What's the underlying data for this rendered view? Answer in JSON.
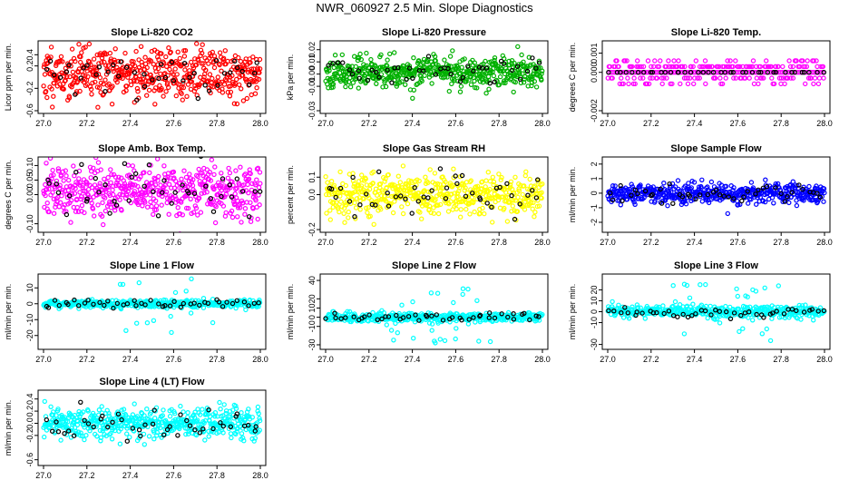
{
  "figure": {
    "title": "NWR_060927  2.5 Min. Slope Diagnostics"
  },
  "chart_data": [
    {
      "id": "co2",
      "type": "scatter",
      "title": "Slope Li-820 CO2",
      "ylabel": "Licor ppm per min.",
      "xlim": [
        27.0,
        28.0
      ],
      "ylim": [
        -0.6,
        0.6
      ],
      "xticks": [
        "27.0",
        "27.2",
        "27.4",
        "27.6",
        "27.8",
        "28.0"
      ],
      "yticks": [
        {
          "v": -0.6,
          "t": "-0.6"
        },
        {
          "v": -0.2,
          "t": "-0.2"
        },
        {
          "v": 0.2,
          "t": "0.2"
        },
        {
          "v": 0.4,
          "t": "0.4"
        }
      ],
      "color": "#ff0000",
      "center": 0.07,
      "spread": 0.24,
      "n_main": 520,
      "n_ref": 45,
      "seed": 11
    },
    {
      "id": "press",
      "type": "scatter",
      "title": "Slope Li-820 Pressure",
      "ylabel": "kPa per min.",
      "xlim": [
        27.0,
        28.0
      ],
      "ylim": [
        -0.03,
        0.025
      ],
      "xticks": [
        "27.0",
        "27.2",
        "27.4",
        "27.6",
        "27.8",
        "28.0"
      ],
      "yticks": [
        {
          "v": -0.03,
          "t": "-0.03"
        },
        {
          "v": -0.01,
          "t": "-0.01"
        },
        {
          "v": 0.0,
          "t": "0.00"
        },
        {
          "v": 0.01,
          "t": "0.01"
        },
        {
          "v": 0.02,
          "t": "0.02"
        }
      ],
      "color": "#00b000",
      "center": 0.002,
      "spread": 0.006,
      "n_main": 520,
      "n_ref": 45,
      "seed": 23
    },
    {
      "id": "temp",
      "type": "scatter",
      "title": "Slope Li-820 Temp.",
      "ylabel": "degrees C per min.",
      "xlim": [
        27.0,
        28.0
      ],
      "ylim": [
        -0.002,
        0.0015
      ],
      "xticks": [
        "27.0",
        "27.2",
        "27.4",
        "27.6",
        "27.8",
        "28.0"
      ],
      "yticks": [
        {
          "v": -0.002,
          "t": "-0.002"
        },
        {
          "v": 0.0,
          "t": "0.000"
        },
        {
          "v": 0.001,
          "t": "0.001"
        }
      ],
      "color": "#ff00ff",
      "center": 0.0,
      "spread": 0.0006,
      "n_main": 200,
      "n_ref": 40,
      "seed": 37,
      "quantized": true
    },
    {
      "id": "box",
      "type": "scatter",
      "title": "Slope Amb. Box Temp.",
      "ylabel": "degrees C per min.",
      "xlim": [
        27.0,
        28.0
      ],
      "ylim": [
        -0.12,
        0.12
      ],
      "xticks": [
        "27.0",
        "27.2",
        "27.4",
        "27.6",
        "27.8",
        "28.0"
      ],
      "yticks": [
        {
          "v": -0.1,
          "t": "-0.10"
        },
        {
          "v": 0.0,
          "t": "0.00"
        },
        {
          "v": 0.05,
          "t": "0.05"
        },
        {
          "v": 0.1,
          "t": "0.10"
        }
      ],
      "color": "#ff00ff",
      "center": 0.01,
      "spread": 0.045,
      "n_main": 520,
      "n_ref": 45,
      "seed": 41
    },
    {
      "id": "rh",
      "type": "scatter",
      "title": "Slope Gas Stream RH",
      "ylabel": "percent per min.",
      "xlim": [
        27.0,
        28.0
      ],
      "ylim": [
        -0.2,
        0.2
      ],
      "xticks": [
        "27.0",
        "27.2",
        "27.4",
        "27.6",
        "27.8",
        "28.0"
      ],
      "yticks": [
        {
          "v": -0.2,
          "t": "-0.2"
        },
        {
          "v": 0.0,
          "t": "0.0"
        },
        {
          "v": 0.1,
          "t": "0.1"
        }
      ],
      "color": "#ffff00",
      "center": 0.0,
      "spread": 0.06,
      "n_main": 520,
      "n_ref": 45,
      "seed": 53
    },
    {
      "id": "flow",
      "type": "scatter",
      "title": "Slope Sample Flow",
      "ylabel": "ml/min per min.",
      "xlim": [
        27.0,
        28.0
      ],
      "ylim": [
        -2.5,
        2.3
      ],
      "xticks": [
        "27.0",
        "27.2",
        "27.4",
        "27.6",
        "27.8",
        "28.0"
      ],
      "yticks": [
        {
          "v": -2,
          "t": "-2"
        },
        {
          "v": -1,
          "t": "-1"
        },
        {
          "v": 0,
          "t": "0"
        },
        {
          "v": 1,
          "t": "1"
        },
        {
          "v": 2,
          "t": "2"
        }
      ],
      "color": "#0000ff",
      "center": 0.0,
      "spread": 0.35,
      "n_main": 480,
      "n_ref": 45,
      "seed": 61
    },
    {
      "id": "line1",
      "type": "scatter",
      "title": "Slope Line 1 Flow",
      "ylabel": "ml/min per min.",
      "xlim": [
        27.0,
        28.0
      ],
      "ylim": [
        -27,
        17
      ],
      "xticks": [
        "27.0",
        "27.2",
        "27.4",
        "27.6",
        "27.8",
        "28.0"
      ],
      "yticks": [
        {
          "v": -20,
          "t": "-20"
        },
        {
          "v": -10,
          "t": "-10"
        },
        {
          "v": 0,
          "t": "0"
        },
        {
          "v": 10,
          "t": "10"
        }
      ],
      "color": "#00ffff",
      "center": 0.0,
      "spread": 1.2,
      "n_main": 420,
      "n_ref": 45,
      "seed": 71,
      "outliers": 14
    },
    {
      "id": "line2",
      "type": "scatter",
      "title": "Slope Line 2 Flow",
      "ylabel": "ml/min per min.",
      "xlim": [
        27.0,
        28.0
      ],
      "ylim": [
        -32,
        44
      ],
      "xticks": [
        "27.0",
        "27.2",
        "27.4",
        "27.6",
        "27.8",
        "28.0"
      ],
      "yticks": [
        {
          "v": -30,
          "t": "-30"
        },
        {
          "v": -10,
          "t": "-10"
        },
        {
          "v": 0,
          "t": "0"
        },
        {
          "v": 10,
          "t": "10"
        },
        {
          "v": 20,
          "t": "20"
        },
        {
          "v": 40,
          "t": "40"
        }
      ],
      "color": "#00ffff",
      "center": 0.0,
      "spread": 2.5,
      "n_main": 420,
      "n_ref": 45,
      "seed": 83,
      "outliers": 22
    },
    {
      "id": "line3",
      "type": "scatter",
      "title": "Slope Line 3 Flow",
      "ylabel": "ml/min per min.",
      "xlim": [
        27.0,
        28.0
      ],
      "ylim": [
        -32,
        32
      ],
      "xticks": [
        "27.0",
        "27.2",
        "27.4",
        "27.6",
        "27.8",
        "28.0"
      ],
      "yticks": [
        {
          "v": -30,
          "t": "-30"
        },
        {
          "v": -10,
          "t": "-10"
        },
        {
          "v": 0,
          "t": "0"
        },
        {
          "v": 10,
          "t": "10"
        },
        {
          "v": 20,
          "t": "20"
        }
      ],
      "color": "#00ffff",
      "center": 0.0,
      "spread": 3.0,
      "n_main": 420,
      "n_ref": 45,
      "seed": 97,
      "outliers": 22
    },
    {
      "id": "line4",
      "type": "scatter",
      "title": "Slope Line 4 (LT) Flow",
      "ylabel": "ml/min per min.",
      "xlim": [
        27.0,
        28.0
      ],
      "ylim": [
        -0.65,
        0.5
      ],
      "xticks": [
        "27.0",
        "27.2",
        "27.4",
        "27.6",
        "27.8",
        "28.0"
      ],
      "yticks": [
        {
          "v": -0.6,
          "t": "-0.6"
        },
        {
          "v": -0.2,
          "t": "-0.2"
        },
        {
          "v": 0.0,
          "t": "0.0"
        },
        {
          "v": 0.2,
          "t": "0.2"
        },
        {
          "v": 0.4,
          "t": "0.4"
        }
      ],
      "color": "#00ffff",
      "center": 0.0,
      "spread": 0.13,
      "n_main": 520,
      "n_ref": 45,
      "seed": 103
    }
  ]
}
